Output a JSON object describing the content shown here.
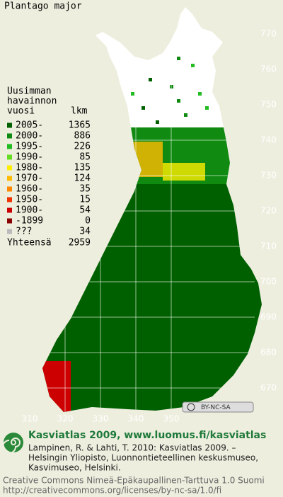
{
  "title": "Plantago major",
  "legend": {
    "heading": [
      "Uusimman",
      "havainnon",
      "vuosi"
    ],
    "count_heading": "lkm",
    "rows": [
      {
        "label": "2005-",
        "count": 1365,
        "color": "#006000"
      },
      {
        "label": "2000-",
        "count": 886,
        "color": "#108a10"
      },
      {
        "label": "1995-",
        "count": 226,
        "color": "#22bb22"
      },
      {
        "label": "1990-",
        "count": 85,
        "color": "#66dd22"
      },
      {
        "label": "1980-",
        "count": 135,
        "color": "#ffee00"
      },
      {
        "label": "1970-",
        "count": 124,
        "color": "#ffbb00"
      },
      {
        "label": "1960-",
        "count": 35,
        "color": "#ff8800"
      },
      {
        "label": "1950-",
        "count": 15,
        "color": "#ee3300"
      },
      {
        "label": "1900-",
        "count": 54,
        "color": "#cc0000"
      },
      {
        "label": "-1899",
        "count": 0,
        "color": "#880000"
      },
      {
        "label": "???",
        "count": 34,
        "color": "#bbbbbb"
      }
    ],
    "total_label": "Yhteensä",
    "total": 2959
  },
  "grid": {
    "north_labels": [
      770,
      760,
      750,
      740,
      730,
      720,
      710,
      700,
      690,
      680,
      670
    ],
    "east_labels": [
      310,
      320,
      330,
      340,
      350
    ]
  },
  "license_badge": "BY-NC-SA",
  "footer": {
    "title": "Kasviatlas 2009, www.luomus.fi/kasviatlas",
    "citation": [
      "Lampinen, R. & Lahti, T. 2010: Kasviatlas 2009. –",
      "Helsingin Yliopisto, Luonnontieteellinen keskusmuseo,",
      "Kasvimuseo, Helsinki."
    ],
    "license": [
      "Creative Commons Nimeä-Epäkaupallinen-Tarttuva 1.0 Suomi",
      "http://creativecommons.org/licenses/by-nc-sa/1.0/fi"
    ]
  }
}
